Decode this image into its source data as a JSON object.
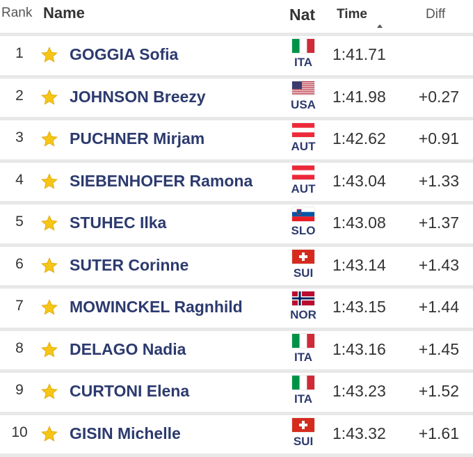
{
  "table": {
    "header": {
      "rank": "Rank",
      "name": "Name",
      "nat": "Nat",
      "time": "Time",
      "diff": "Diff"
    },
    "rows": [
      {
        "rank": "1",
        "name": "GOGGIA Sofia",
        "nat": "ITA",
        "time": "1:41.71"
      },
      {
        "rank": "2",
        "name": "JOHNSON Breezy",
        "nat": "USA",
        "time": "1:41.98",
        "diff": "+0.27"
      },
      {
        "rank": "3",
        "name": "PUCHNER Mirjam",
        "nat": "AUT",
        "time": "1:42.62",
        "diff": "+0.91"
      },
      {
        "rank": "4",
        "name": "SIEBENHOFER Ramona",
        "nat": "AUT",
        "time": "1:43.04",
        "diff": "+1.33"
      },
      {
        "rank": "5",
        "name": "STUHEC Ilka",
        "nat": "SLO",
        "time": "1:43.08",
        "diff": "+1.37"
      },
      {
        "rank": "6",
        "name": "SUTER Corinne",
        "nat": "SUI",
        "time": "1:43.14",
        "diff": "+1.43"
      },
      {
        "rank": "7",
        "name": "MOWINCKEL Ragnhild",
        "nat": "NOR",
        "time": "1:43.15",
        "diff": "+1.44"
      },
      {
        "rank": "8",
        "name": "DELAGO Nadia",
        "nat": "ITA",
        "time": "1:43.16",
        "diff": "+1.45"
      },
      {
        "rank": "9",
        "name": "CURTONI Elena",
        "nat": "ITA",
        "time": "1:43.23",
        "diff": "+1.52"
      },
      {
        "rank": "10",
        "name": "GISIN Michelle",
        "nat": "SUI",
        "time": "1:43.32",
        "diff": "+1.61"
      }
    ]
  }
}
